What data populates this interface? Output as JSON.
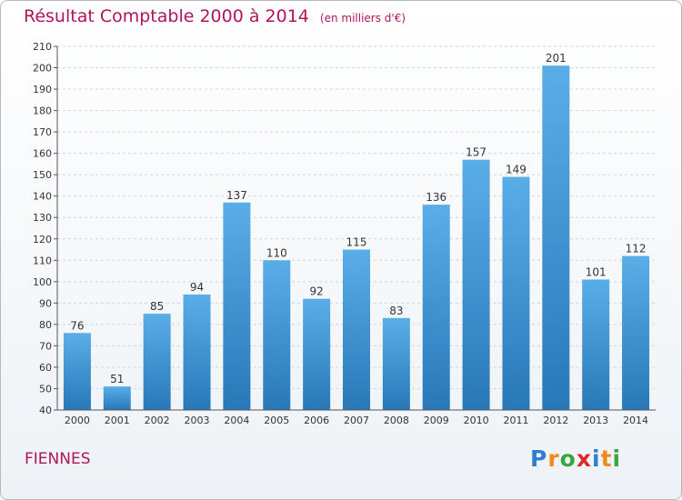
{
  "title": "Résultat Comptable 2000 à 2014",
  "subtitle": "(en milliers d'€)",
  "commune": "FIENNES",
  "logo": {
    "text": "Proxiti",
    "letters": [
      "P",
      "r",
      "o",
      "x",
      "i",
      "t",
      "i"
    ],
    "colors": [
      "#2f7fd0",
      "#f08a1a",
      "#3aa63a",
      "#d92a2a",
      "#2f7fd0",
      "#f08a1a",
      "#3aa63a"
    ]
  },
  "colors": {
    "title": "#b0155a",
    "bar_top": "#5aaee8",
    "bar_bottom": "#2878b8",
    "grid": "#cfd6de",
    "axis_text": "#333333"
  },
  "chart_data": {
    "type": "bar",
    "categories": [
      "2000",
      "2001",
      "2002",
      "2003",
      "2004",
      "2005",
      "2006",
      "2007",
      "2008",
      "2009",
      "2010",
      "2011",
      "2012",
      "2013",
      "2014"
    ],
    "values": [
      76,
      51,
      85,
      94,
      137,
      110,
      92,
      115,
      83,
      136,
      157,
      149,
      201,
      101,
      112
    ],
    "ylim": [
      40,
      210
    ],
    "yticks": [
      40,
      50,
      60,
      70,
      80,
      90,
      100,
      110,
      120,
      130,
      140,
      150,
      160,
      170,
      180,
      190,
      200,
      210
    ],
    "grid": "dashed horizontal",
    "legend": "none"
  }
}
